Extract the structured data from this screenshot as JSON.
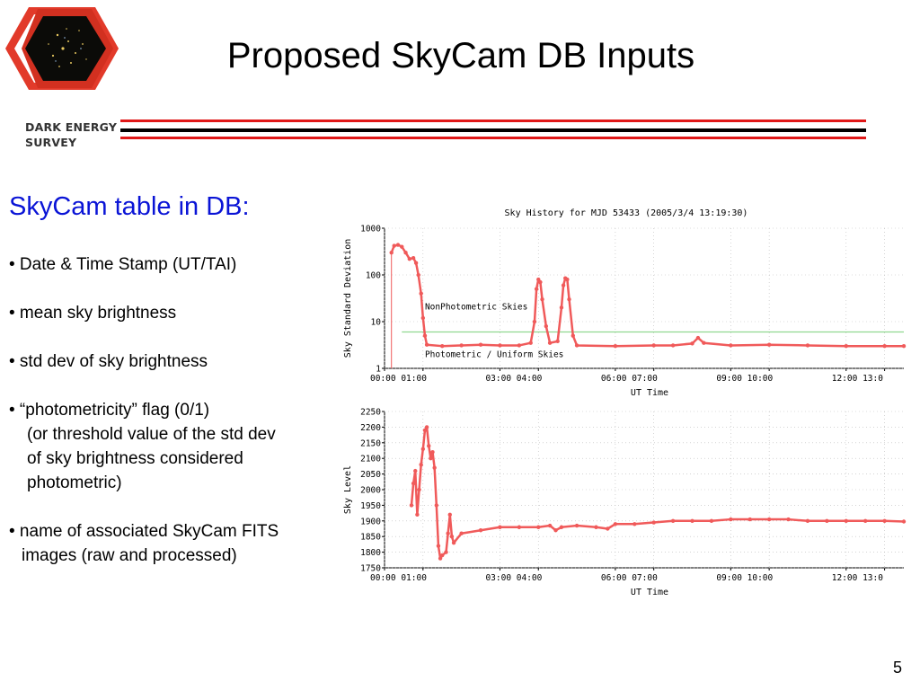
{
  "logo": {
    "line1": "DARK ENERGY",
    "line2": "SURVEY"
  },
  "slide": {
    "title": "Proposed SkyCam DB Inputs",
    "subheading": "SkyCam table in DB:",
    "page_number": "5",
    "bullets": [
      {
        "text": "• Date & Time Stamp (UT/TAI)",
        "continuation": []
      },
      {
        "text": "• mean sky brightness",
        "continuation": []
      },
      {
        "text": "• std dev of sky brightness",
        "continuation": []
      },
      {
        "text": "• “photometricity” flag (0/1)",
        "continuation": [
          "(or threshold value of the std dev",
          "of sky brightness considered",
          "photometric)"
        ]
      },
      {
        "text": "• name of associated SkyCam FITS",
        "continuation": [
          "images (raw and processed)"
        ]
      }
    ]
  },
  "chart_data": [
    {
      "type": "scatter",
      "title": "Sky History for MJD 53433 (2005/3/4 13:19:30)",
      "xlabel": "UT Time",
      "ylabel": "Sky Standard Deviation",
      "yscale": "log",
      "ylim": [
        1,
        1000
      ],
      "xlim_hours": [
        0,
        13.5
      ],
      "x_ticks": [
        "00:00",
        "01:00",
        "03:00",
        "04:00",
        "06:00",
        "07:00",
        "09:00",
        "10:00",
        "12:00",
        "13:0"
      ],
      "y_ticks": [
        "1000",
        "100",
        "10",
        "1"
      ],
      "threshold": 6,
      "annotations": [
        "NonPhotometric Skies",
        "Photometric / Uniform Skies"
      ],
      "series_color": "#f05a5a",
      "threshold_color": "#90d890",
      "points": [
        [
          0.18,
          300
        ],
        [
          0.25,
          420
        ],
        [
          0.35,
          440
        ],
        [
          0.45,
          400
        ],
        [
          0.55,
          300
        ],
        [
          0.65,
          220
        ],
        [
          0.75,
          230
        ],
        [
          0.82,
          180
        ],
        [
          0.88,
          100
        ],
        [
          0.95,
          40
        ],
        [
          1.0,
          12
        ],
        [
          1.05,
          5
        ],
        [
          1.1,
          3.2
        ],
        [
          1.5,
          3
        ],
        [
          2.0,
          3.1
        ],
        [
          2.5,
          3.2
        ],
        [
          3.0,
          3.1
        ],
        [
          3.5,
          3.1
        ],
        [
          3.8,
          3.5
        ],
        [
          3.9,
          10
        ],
        [
          3.95,
          50
        ],
        [
          4.0,
          80
        ],
        [
          4.05,
          70
        ],
        [
          4.1,
          30
        ],
        [
          4.2,
          8
        ],
        [
          4.3,
          3.5
        ],
        [
          4.5,
          3.8
        ],
        [
          4.6,
          20
        ],
        [
          4.65,
          60
        ],
        [
          4.7,
          85
        ],
        [
          4.75,
          80
        ],
        [
          4.8,
          30
        ],
        [
          4.9,
          5
        ],
        [
          5.0,
          3.1
        ],
        [
          6.0,
          3
        ],
        [
          7.0,
          3.1
        ],
        [
          7.5,
          3.1
        ],
        [
          8.0,
          3.4
        ],
        [
          8.15,
          4.5
        ],
        [
          8.3,
          3.5
        ],
        [
          9.0,
          3.1
        ],
        [
          10.0,
          3.2
        ],
        [
          11.0,
          3.1
        ],
        [
          12.0,
          3.0
        ],
        [
          13.0,
          3.0
        ],
        [
          13.5,
          3.0
        ]
      ]
    },
    {
      "type": "scatter",
      "xlabel": "UT Time",
      "ylabel": "Sky Level",
      "ylim": [
        1750,
        2250
      ],
      "xlim_hours": [
        0,
        13.5
      ],
      "x_ticks": [
        "00:00",
        "01:00",
        "03:00",
        "04:00",
        "06:00",
        "07:00",
        "09:00",
        "10:00",
        "12:00",
        "13:0"
      ],
      "y_ticks": [
        "2250",
        "2200",
        "2150",
        "2100",
        "2050",
        "2000",
        "1950",
        "1900",
        "1850",
        "1800",
        "1750"
      ],
      "series_color": "#f05a5a",
      "points": [
        [
          0.7,
          1950
        ],
        [
          0.75,
          2020
        ],
        [
          0.8,
          2060
        ],
        [
          0.85,
          1920
        ],
        [
          0.9,
          2000
        ],
        [
          0.95,
          2080
        ],
        [
          1.0,
          2130
        ],
        [
          1.05,
          2190
        ],
        [
          1.1,
          2200
        ],
        [
          1.15,
          2140
        ],
        [
          1.2,
          2100
        ],
        [
          1.25,
          2120
        ],
        [
          1.3,
          2070
        ],
        [
          1.35,
          1950
        ],
        [
          1.4,
          1820
        ],
        [
          1.45,
          1780
        ],
        [
          1.5,
          1790
        ],
        [
          1.6,
          1800
        ],
        [
          1.65,
          1860
        ],
        [
          1.7,
          1920
        ],
        [
          1.75,
          1850
        ],
        [
          1.8,
          1830
        ],
        [
          2.0,
          1860
        ],
        [
          2.5,
          1870
        ],
        [
          3.0,
          1880
        ],
        [
          3.5,
          1880
        ],
        [
          4.0,
          1880
        ],
        [
          4.3,
          1885
        ],
        [
          4.45,
          1870
        ],
        [
          4.6,
          1880
        ],
        [
          5.0,
          1885
        ],
        [
          5.5,
          1880
        ],
        [
          5.8,
          1875
        ],
        [
          6.0,
          1890
        ],
        [
          6.5,
          1890
        ],
        [
          7.0,
          1895
        ],
        [
          7.5,
          1900
        ],
        [
          8.0,
          1900
        ],
        [
          8.5,
          1900
        ],
        [
          9.0,
          1905
        ],
        [
          9.5,
          1905
        ],
        [
          10.0,
          1905
        ],
        [
          10.5,
          1905
        ],
        [
          11.0,
          1900
        ],
        [
          11.5,
          1900
        ],
        [
          12.0,
          1900
        ],
        [
          12.5,
          1900
        ],
        [
          13.0,
          1900
        ],
        [
          13.5,
          1898
        ]
      ]
    }
  ]
}
